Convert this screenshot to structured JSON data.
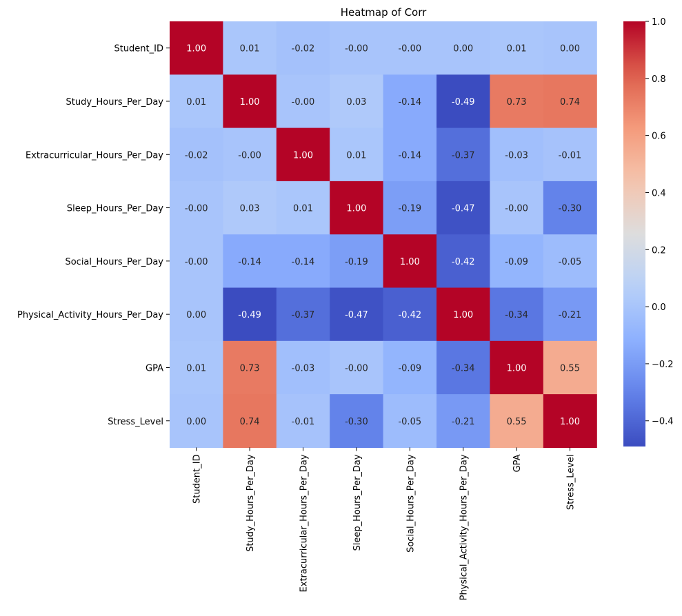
{
  "chart_data": {
    "type": "heatmap",
    "title": "Heatmap of Corr",
    "xlabel": "",
    "ylabel": "",
    "colormap": "coolwarm",
    "vmin": -0.49,
    "vmax": 1.0,
    "row_labels": [
      "Student_ID",
      "Study_Hours_Per_Day",
      "Extracurricular_Hours_Per_Day",
      "Sleep_Hours_Per_Day",
      "Social_Hours_Per_Day",
      "Physical_Activity_Hours_Per_Day",
      "GPA",
      "Stress_Level"
    ],
    "col_labels": [
      "Student_ID",
      "Study_Hours_Per_Day",
      "Extracurricular_Hours_Per_Day",
      "Sleep_Hours_Per_Day",
      "Social_Hours_Per_Day",
      "Physical_Activity_Hours_Per_Day",
      "GPA",
      "Stress_Level"
    ],
    "values": [
      [
        1.0,
        0.01,
        -0.02,
        -0.0,
        -0.0,
        0.0,
        0.01,
        0.0
      ],
      [
        0.01,
        1.0,
        -0.0,
        0.03,
        -0.14,
        -0.49,
        0.73,
        0.74
      ],
      [
        -0.02,
        -0.0,
        1.0,
        0.01,
        -0.14,
        -0.37,
        -0.03,
        -0.01
      ],
      [
        -0.0,
        0.03,
        0.01,
        1.0,
        -0.19,
        -0.47,
        -0.0,
        -0.3
      ],
      [
        -0.0,
        -0.14,
        -0.14,
        -0.19,
        1.0,
        -0.42,
        -0.09,
        -0.05
      ],
      [
        0.0,
        -0.49,
        -0.37,
        -0.47,
        -0.42,
        1.0,
        -0.34,
        -0.21
      ],
      [
        0.01,
        0.73,
        -0.03,
        -0.0,
        -0.09,
        -0.34,
        1.0,
        0.55
      ],
      [
        0.0,
        0.74,
        -0.01,
        -0.3,
        -0.05,
        -0.21,
        0.55,
        1.0
      ]
    ],
    "cell_labels": [
      [
        "1.00",
        "0.01",
        "-0.02",
        "-0.00",
        "-0.00",
        "0.00",
        "0.01",
        "0.00"
      ],
      [
        "0.01",
        "1.00",
        "-0.00",
        "0.03",
        "-0.14",
        "-0.49",
        "0.73",
        "0.74"
      ],
      [
        "-0.02",
        "-0.00",
        "1.00",
        "0.01",
        "-0.14",
        "-0.37",
        "-0.03",
        "-0.01"
      ],
      [
        "-0.00",
        "0.03",
        "0.01",
        "1.00",
        "-0.19",
        "-0.47",
        "-0.00",
        "-0.30"
      ],
      [
        "-0.00",
        "-0.14",
        "-0.14",
        "-0.19",
        "1.00",
        "-0.42",
        "-0.09",
        "-0.05"
      ],
      [
        "0.00",
        "-0.49",
        "-0.37",
        "-0.47",
        "-0.42",
        "1.00",
        "-0.34",
        "-0.21"
      ],
      [
        "0.01",
        "0.73",
        "-0.03",
        "-0.00",
        "-0.09",
        "-0.34",
        "1.00",
        "0.55"
      ],
      [
        "0.00",
        "0.74",
        "-0.01",
        "-0.30",
        "-0.05",
        "-0.21",
        "0.55",
        "1.00"
      ]
    ],
    "colorbar": {
      "ticks": [
        1.0,
        0.8,
        0.6,
        0.4,
        0.2,
        0.0,
        -0.2,
        -0.4
      ],
      "tick_labels": [
        "1.0",
        "0.8",
        "0.6",
        "0.4",
        "0.2",
        "0.0",
        "−0.2",
        "−0.4"
      ]
    }
  }
}
